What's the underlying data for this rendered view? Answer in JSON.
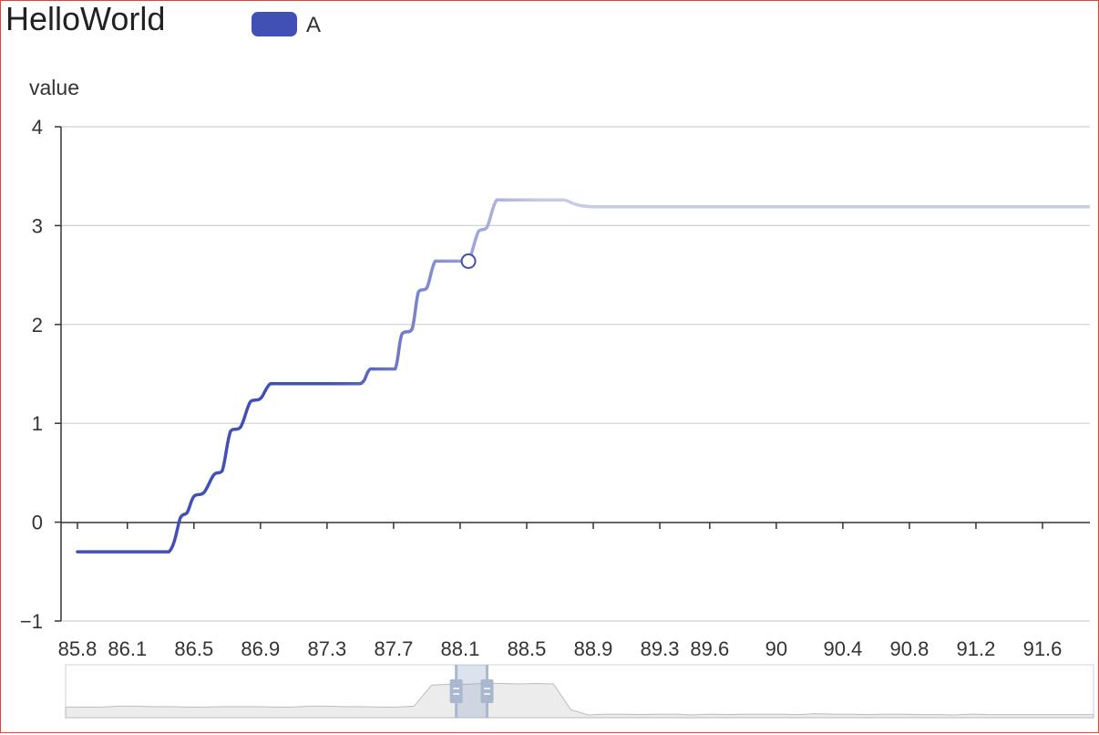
{
  "chart_data": {
    "type": "line",
    "title": "HelloWorld",
    "ylabel": "value",
    "xlabel": "",
    "legend": {
      "position": "top-left",
      "entries": [
        {
          "name": "A",
          "color": "#4150b4"
        }
      ]
    },
    "series": [
      {
        "name": "A",
        "color": "#4150b4",
        "visualmap_faded_after": 88.15,
        "x": [
          85.8,
          86.2,
          86.35,
          86.42,
          86.46,
          86.5,
          86.56,
          86.62,
          86.67,
          86.72,
          86.78,
          86.84,
          86.9,
          86.96,
          87.05,
          87.2,
          87.35,
          87.5,
          87.56,
          87.65,
          87.71,
          87.75,
          87.81,
          87.85,
          87.9,
          87.95,
          88.02,
          88.1,
          88.15,
          88.21,
          88.26,
          88.32,
          88.4,
          88.6,
          88.72,
          88.9,
          89.5,
          90.5,
          91.5,
          91.98
        ],
        "y": [
          -0.3,
          -0.3,
          -0.3,
          0.05,
          0.1,
          0.26,
          0.3,
          0.48,
          0.52,
          0.92,
          0.96,
          1.22,
          1.25,
          1.4,
          1.4,
          1.4,
          1.4,
          1.4,
          1.55,
          1.55,
          1.55,
          1.9,
          1.95,
          2.33,
          2.37,
          2.64,
          2.64,
          2.64,
          2.64,
          2.94,
          2.98,
          3.26,
          3.26,
          3.26,
          3.26,
          3.19,
          3.19,
          3.19,
          3.19,
          3.19
        ]
      }
    ],
    "highlight_point": {
      "x": 88.15,
      "y": 2.64
    },
    "x_tick_labels": [
      "85.8",
      "86.1",
      "86.5",
      "86.9",
      "87.3",
      "87.7",
      "88.1",
      "88.5",
      "88.9",
      "89.3",
      "89.6",
      "90",
      "90.4",
      "90.8",
      "91.2",
      "91.6"
    ],
    "x_tick_values": [
      85.8,
      86.1,
      86.5,
      86.9,
      87.3,
      87.7,
      88.1,
      88.5,
      88.9,
      89.3,
      89.6,
      90,
      90.4,
      90.8,
      91.2,
      91.6
    ],
    "y_tick_labels": [
      "4",
      "3",
      "2",
      "1",
      "0",
      "−1"
    ],
    "y_tick_values": [
      4,
      3,
      2,
      1,
      0,
      -1
    ],
    "xlim": [
      85.8,
      92.0
    ],
    "ylim": [
      -1,
      4
    ],
    "grid": "horizontal",
    "datazoom": {
      "start": 0.38,
      "end": 0.41,
      "overview_y": [
        0.2,
        0.2,
        0.2,
        0.22,
        0.22,
        0.21,
        0.21,
        0.2,
        0.2,
        0.21,
        0.21,
        0.21,
        0.2,
        0.2,
        0.22,
        0.22,
        0.21,
        0.21,
        0.2,
        0.2,
        0.22,
        0.7,
        0.72,
        0.72,
        0.74,
        0.74,
        0.73,
        0.74,
        0.73,
        0.14,
        0.02,
        0.04,
        0.04,
        0.03,
        0.04,
        0.04,
        0.02,
        0.04,
        0.03,
        0.04,
        0.04,
        0.04,
        0.03,
        0.05,
        0.04,
        0.04,
        0.03,
        0.04,
        0.04,
        0.03,
        0.03,
        0.02,
        0.04,
        0.03,
        0.03,
        0.03,
        0.03,
        0.03,
        0.03,
        0.03
      ]
    }
  }
}
